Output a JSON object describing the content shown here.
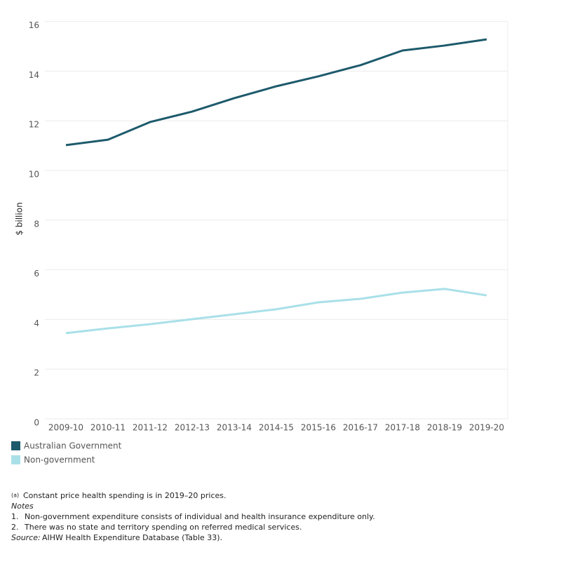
{
  "chart_data": {
    "type": "line",
    "ylabel": "$ billion",
    "categories": [
      "2009-10",
      "2010-11",
      "2011-12",
      "2012-13",
      "2013-14",
      "2014-15",
      "2015-16",
      "2016-17",
      "2017-18",
      "2018-19",
      "2019-20"
    ],
    "series": [
      {
        "name": "Australian Government",
        "color": "#1d5a6c",
        "values": [
          11.02,
          11.24,
          11.95,
          12.37,
          12.91,
          13.39,
          13.79,
          14.24,
          14.83,
          15.03,
          15.28
        ]
      },
      {
        "name": "Non-government",
        "color": "#a9e0e8",
        "values": [
          3.45,
          3.64,
          3.81,
          4.01,
          4.21,
          4.41,
          4.69,
          4.83,
          5.08,
          5.23,
          4.97
        ]
      }
    ],
    "ylim": [
      0,
      16
    ],
    "yticks": [
      0,
      2,
      4,
      6,
      8,
      10,
      12,
      14,
      16
    ],
    "grid": true,
    "footnote": {
      "marker": "(a)",
      "text": "Constant price health spending is in 2019–20 prices."
    },
    "notes_title": "Notes",
    "notes": [
      {
        "number": "1.",
        "text": "Non-government expenditure consists of individual and health insurance expenditure only."
      },
      {
        "number": "2.",
        "text": "There was no state and territory spending on referred medical services."
      }
    ],
    "source_label": "Source:",
    "source": "AIHW Health Expenditure Database (Table 33)."
  }
}
